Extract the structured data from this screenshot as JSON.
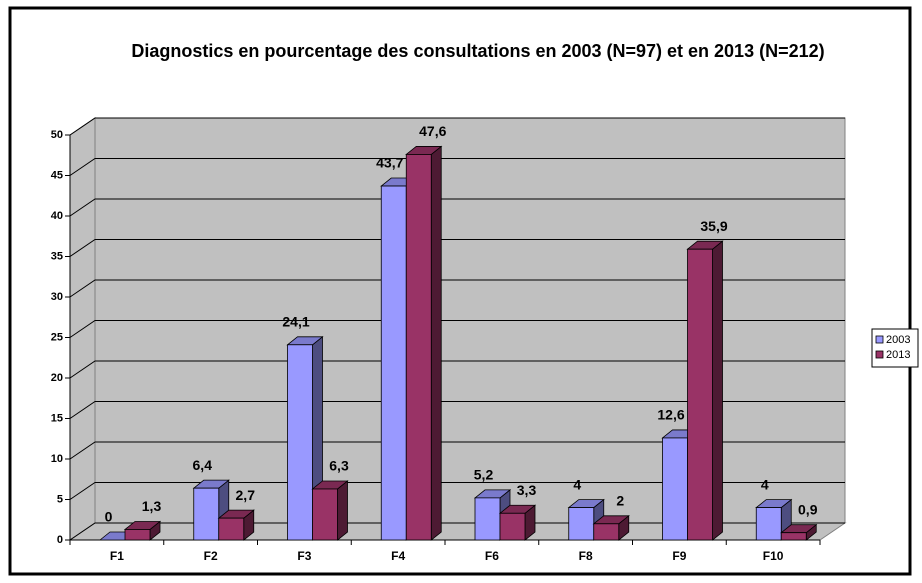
{
  "chart_data": {
    "type": "bar3d",
    "title": "Diagnostics en pourcentage des consultations en 2003 (N=97) et en 2013 (N=212)",
    "categories": [
      "F1",
      "F2",
      "F3",
      "F4",
      "F6",
      "F8",
      "F9",
      "F10"
    ],
    "series": [
      {
        "name": "2003",
        "color": "#9999ff",
        "values": [
          0,
          6.4,
          24.1,
          43.7,
          5.2,
          4,
          12.6,
          4
        ],
        "value_labels": [
          "0",
          "6,4",
          "24,1",
          "43,7",
          "5,2",
          "4",
          "12,6",
          "4"
        ]
      },
      {
        "name": "2013",
        "color": "#993366",
        "values": [
          1.3,
          2.7,
          6.3,
          47.6,
          3.3,
          2,
          35.9,
          0.9
        ],
        "value_labels": [
          "1,3",
          "2,7",
          "6,3",
          "47,6",
          "3,3",
          "2",
          "35,9",
          "0,9"
        ]
      }
    ],
    "ylim": [
      0,
      50
    ],
    "yticks": [
      0,
      5,
      10,
      15,
      20,
      25,
      30,
      35,
      40,
      45,
      50
    ],
    "grid": true,
    "legend": "right"
  }
}
